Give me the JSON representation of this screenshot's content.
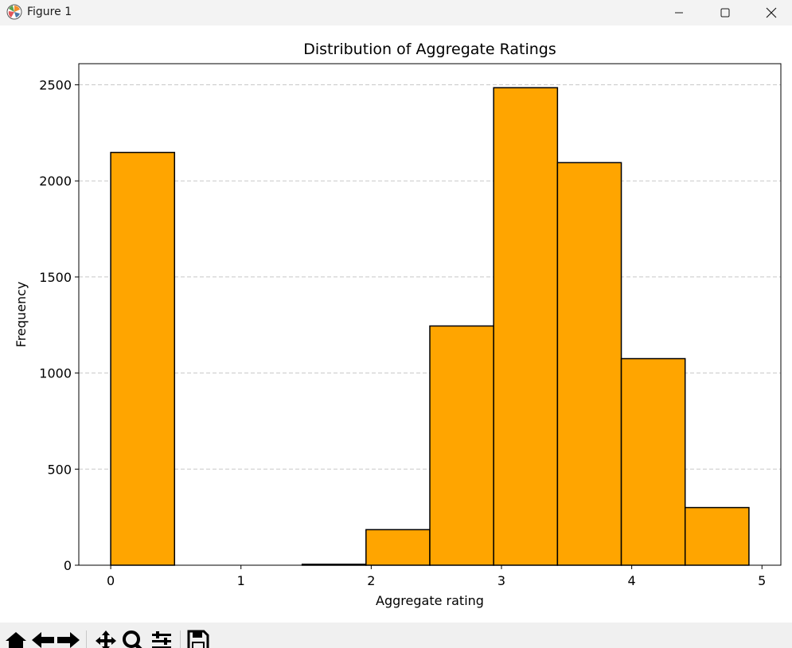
{
  "window": {
    "title": "Figure 1"
  },
  "toolbar": {
    "buttons": [
      "home-icon",
      "back-icon",
      "forward-icon",
      "pan-icon",
      "zoom-icon",
      "configure-subplots-icon",
      "save-icon"
    ]
  },
  "colors": {
    "bar_fill": "#FFA500",
    "bar_edge": "#000000",
    "grid": "#c8c8c8"
  },
  "chart_data": {
    "type": "bar",
    "title": "Distribution of Aggregate Ratings",
    "xlabel": "Aggregate rating",
    "ylabel": "Frequency",
    "bin_edges": [
      0,
      0.49,
      0.98,
      1.47,
      1.96,
      2.45,
      2.94,
      3.43,
      3.92,
      4.41,
      4.9
    ],
    "values": [
      2148,
      0,
      0,
      5,
      185,
      1245,
      2485,
      2095,
      1075,
      300
    ],
    "xlim": [
      -0.245,
      5.145
    ],
    "ylim": [
      0,
      2610
    ],
    "xticks": [
      0,
      1,
      2,
      3,
      4,
      5
    ],
    "yticks": [
      0,
      500,
      1000,
      1500,
      2000,
      2500
    ],
    "grid": "y-dashed"
  }
}
